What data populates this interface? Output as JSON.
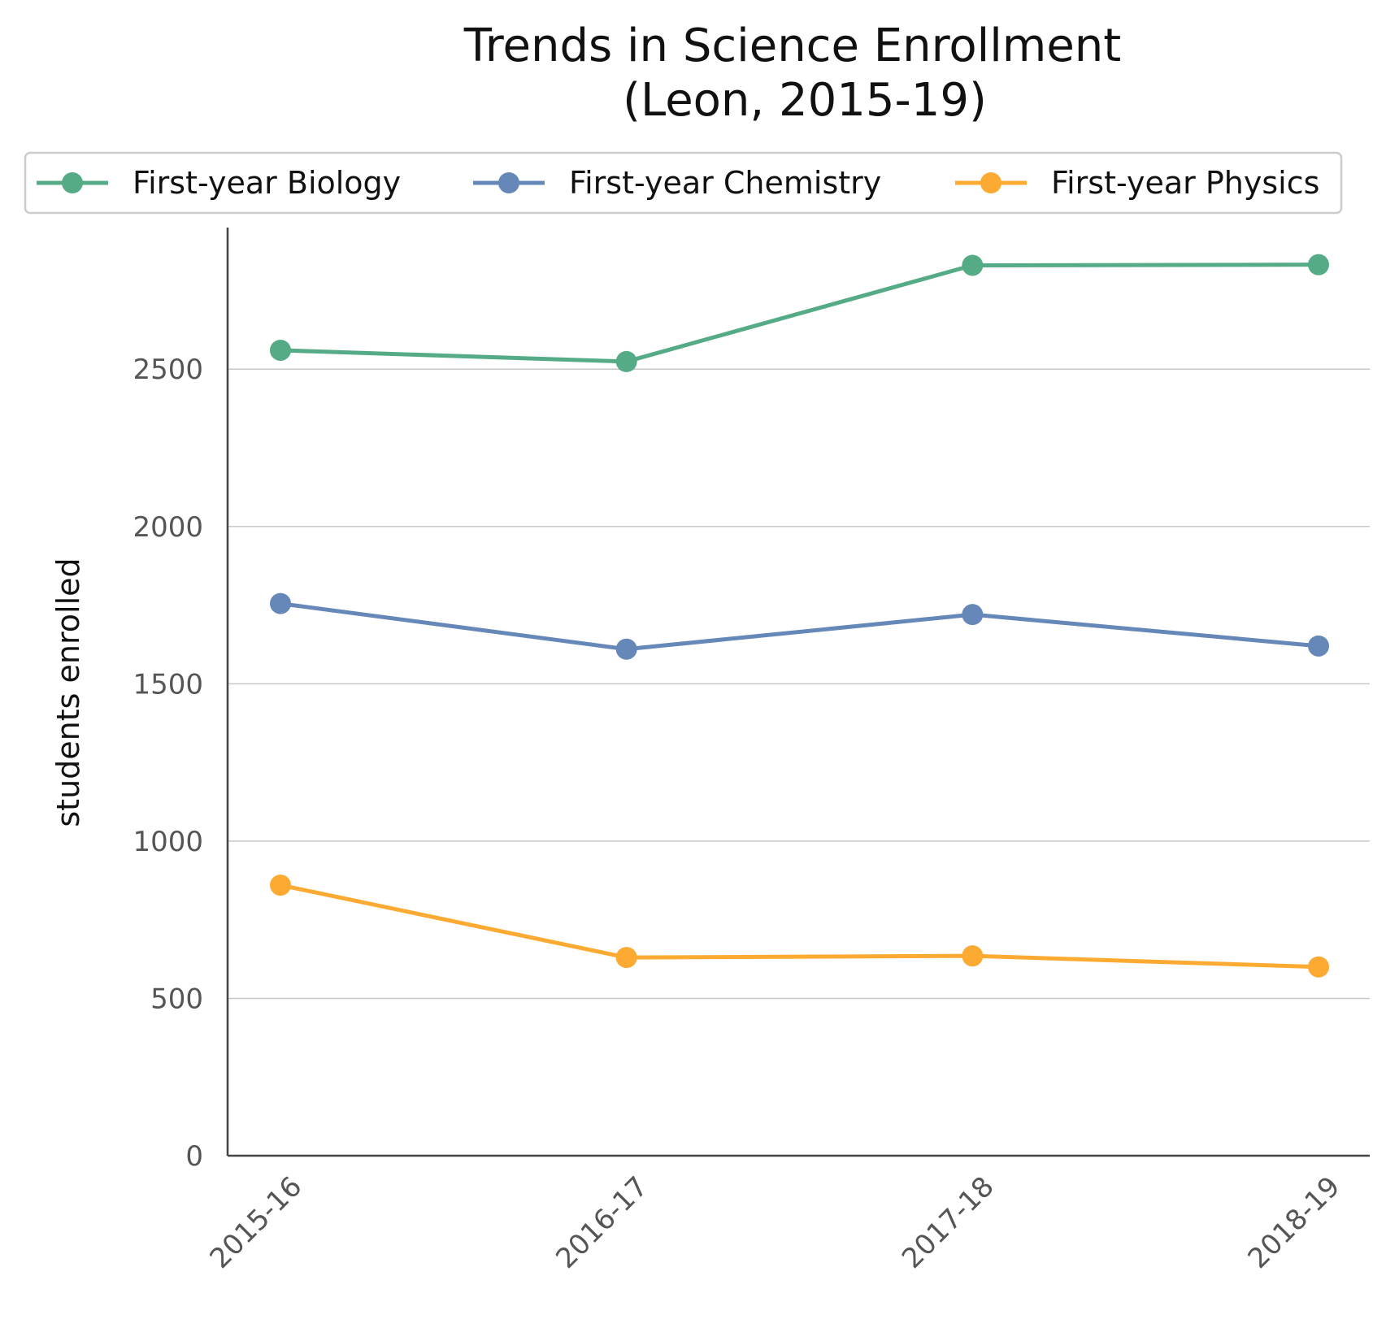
{
  "chart_data": {
    "type": "line",
    "title_line1": "Trends in Science Enrollment",
    "title_line2": "(Leon, 2015-19)",
    "xlabel": "",
    "ylabel": "students enrolled",
    "categories": [
      "2015-16",
      "2016-17",
      "2017-18",
      "2018-19"
    ],
    "ylim": [
      0,
      2950
    ],
    "yticks": [
      0,
      500,
      1000,
      1500,
      2000,
      2500
    ],
    "grid": true,
    "legend_position": "top",
    "series": [
      {
        "name": "First-year Biology",
        "color": "#55ab85",
        "values": [
          2560,
          2524,
          2830,
          2832
        ]
      },
      {
        "name": "First-year Chemistry",
        "color": "#6688b8",
        "values": [
          1755,
          1610,
          1720,
          1620
        ]
      },
      {
        "name": "First-year Physics",
        "color": "#fdaa33",
        "values": [
          860,
          630,
          635,
          600
        ]
      }
    ]
  }
}
